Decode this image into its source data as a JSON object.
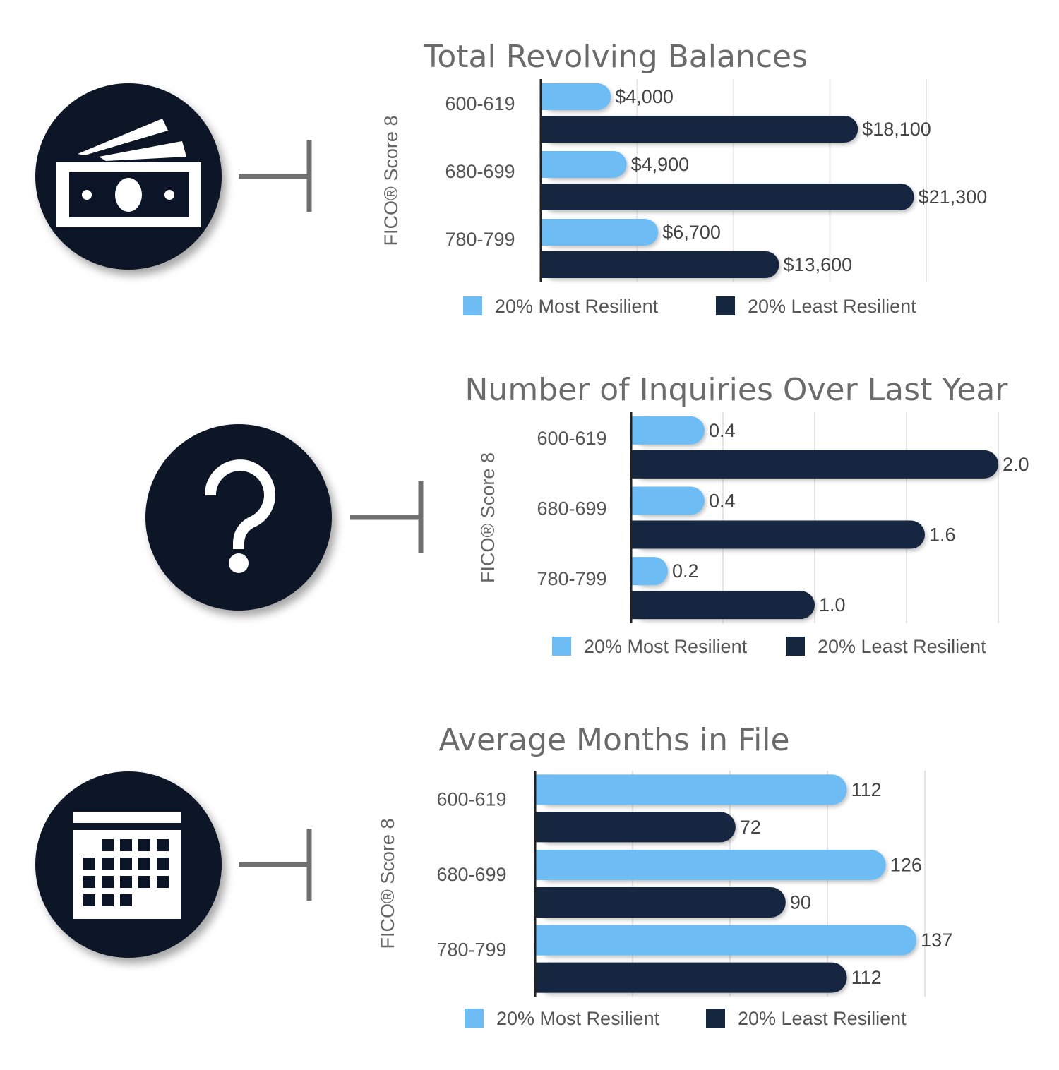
{
  "colors": {
    "most_resilient": "#6dbcf4",
    "least_resilient": "#15263f",
    "icon_circle": "#0c1427",
    "connector": "#707070"
  },
  "icons": [
    "money-icon",
    "question-mark-icon",
    "calendar-icon"
  ],
  "chart_data": [
    {
      "type": "bar",
      "orientation": "horizontal",
      "title": "Total Revolving Balances",
      "ylabel": "FICO® Score 8",
      "categories": [
        "600-619",
        "680-699",
        "780-799"
      ],
      "series": [
        {
          "name": "20% Most Resilient",
          "values": [
            4000,
            4900,
            6700
          ],
          "labels": [
            "$4,000",
            "$4,900",
            "$6,700"
          ]
        },
        {
          "name": "20% Least Resilient",
          "values": [
            18100,
            21300,
            13600
          ],
          "labels": [
            "$18,100",
            "$21,300",
            "$13,600"
          ]
        }
      ],
      "xlim": [
        0,
        22000
      ],
      "grid": true,
      "legend": "bottom"
    },
    {
      "type": "bar",
      "orientation": "horizontal",
      "title": "Number of Inquiries Over Last Year",
      "ylabel": "FICO® Score 8",
      "categories": [
        "600-619",
        "680-699",
        "780-799"
      ],
      "series": [
        {
          "name": "20% Most Resilient",
          "values": [
            0.4,
            0.4,
            0.2
          ],
          "labels": [
            "0.4",
            "0.4",
            "0.2"
          ]
        },
        {
          "name": "20% Least Resilient",
          "values": [
            2.0,
            1.6,
            1.0
          ],
          "labels": [
            "2.0",
            "1.6",
            "1.0"
          ]
        }
      ],
      "xlim": [
        0,
        2.0
      ],
      "grid": true,
      "legend": "bottom"
    },
    {
      "type": "bar",
      "orientation": "horizontal",
      "title": "Average Months in File",
      "ylabel": "FICO® Score 8",
      "categories": [
        "600-619",
        "680-699",
        "780-799"
      ],
      "series": [
        {
          "name": "20% Most Resilient",
          "values": [
            112,
            126,
            137
          ],
          "labels": [
            "112",
            "126",
            "137"
          ]
        },
        {
          "name": "20% Least Resilient",
          "values": [
            72,
            90,
            112
          ],
          "labels": [
            "72",
            "90",
            "112"
          ]
        }
      ],
      "xlim": [
        0,
        140
      ],
      "grid": true,
      "legend": "bottom"
    }
  ]
}
